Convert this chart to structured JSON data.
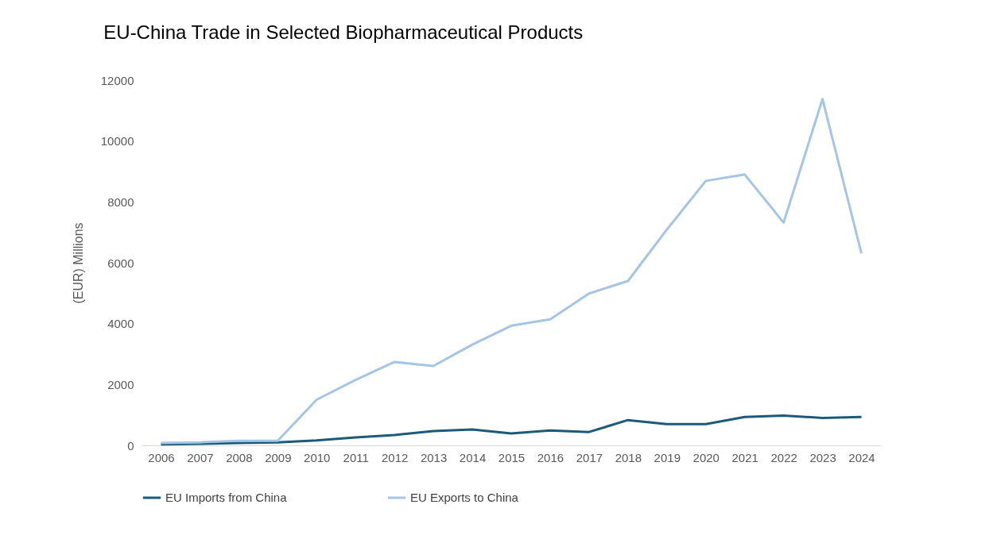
{
  "chart_data": {
    "type": "line",
    "title": "EU-China Trade in Selected Biopharmaceutical Products",
    "ylabel": "(EUR) Millions",
    "categories": [
      "2006",
      "2007",
      "2008",
      "2009",
      "2010",
      "2011",
      "2012",
      "2013",
      "2014",
      "2015",
      "2016",
      "2017",
      "2018",
      "2019",
      "2020",
      "2021",
      "2022",
      "2023",
      "2024"
    ],
    "series": [
      {
        "name": "EU Imports from China",
        "color": "#1b5a78",
        "values": [
          30,
          50,
          80,
          100,
          160,
          260,
          340,
          470,
          520,
          390,
          490,
          440,
          830,
          700,
          700,
          930,
          980,
          900,
          930
        ]
      },
      {
        "name": "EU Exports to China",
        "color": "#a5c5e5",
        "values": [
          80,
          100,
          150,
          150,
          1500,
          2150,
          2740,
          2610,
          3310,
          3930,
          4140,
          4990,
          5400,
          7090,
          8690,
          8900,
          7320,
          11380,
          6310
        ]
      }
    ],
    "ylim": [
      0,
      12000
    ],
    "yticks": [
      0,
      2000,
      4000,
      6000,
      8000,
      10000,
      12000
    ],
    "grid": false,
    "legend": "bottom",
    "marker": "none",
    "line_style": "solid"
  }
}
